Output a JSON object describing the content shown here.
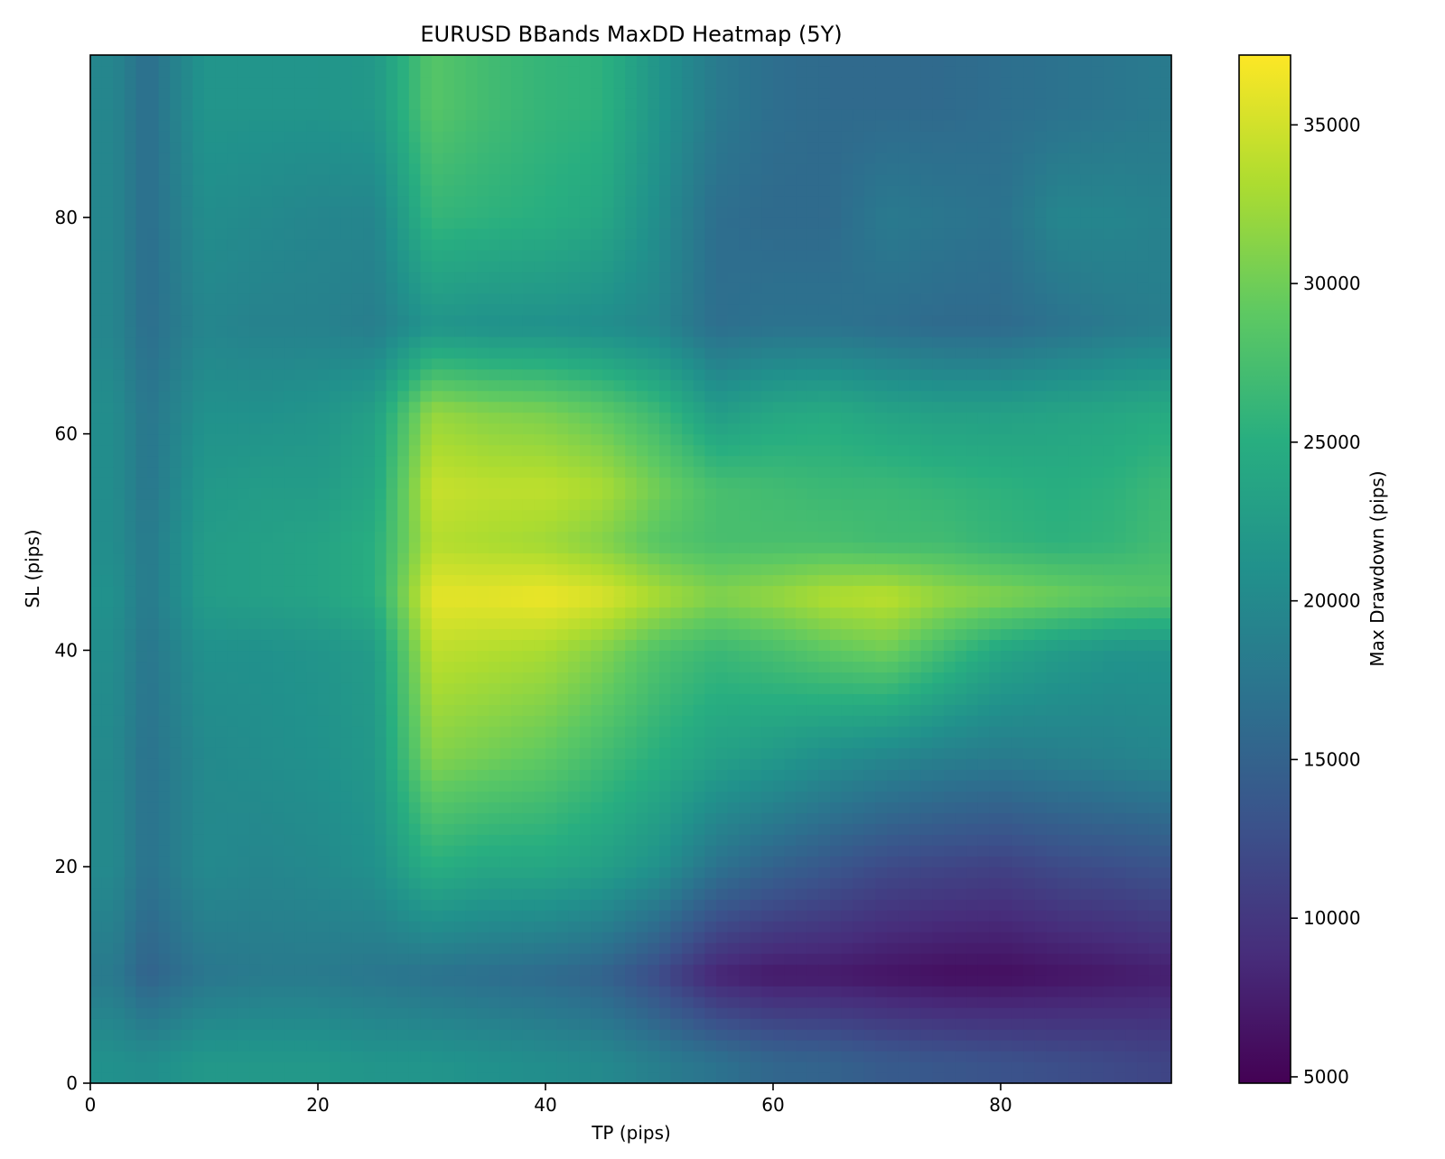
{
  "chart_data": {
    "type": "heatmap",
    "title": "EURUSD BBands MaxDD Heatmap (5Y)",
    "xlabel": "TP (pips)",
    "ylabel": "SL (pips)",
    "xlim": [
      0,
      95
    ],
    "ylim": [
      0,
      95
    ],
    "x_ticks": [
      0,
      20,
      40,
      60,
      80
    ],
    "y_ticks": [
      0,
      20,
      40,
      60,
      80
    ],
    "colorbar": {
      "label": "Max Drawdown (pips)",
      "min": 4800,
      "max": 37200,
      "ticks": [
        5000,
        10000,
        15000,
        20000,
        25000,
        30000,
        35000
      ],
      "colormap": "viridis"
    },
    "approx_grid": {
      "tp": [
        2,
        5,
        10,
        15,
        20,
        25,
        30,
        35,
        40,
        45,
        50,
        55,
        60,
        65,
        70,
        75,
        80,
        85,
        90,
        94
      ],
      "sl": [
        2,
        10,
        20,
        30,
        40,
        45,
        50,
        55,
        62,
        70,
        80,
        90
      ],
      "values": [
        [
          21000,
          20500,
          22000,
          22000,
          22000,
          21500,
          21500,
          21000,
          20500,
          20000,
          18500,
          17000,
          15500,
          15000,
          14000,
          13500,
          13000,
          12500,
          12000,
          11500
        ],
        [
          18000,
          15000,
          17500,
          18000,
          18000,
          17500,
          17000,
          16500,
          16000,
          15000,
          12000,
          8000,
          7000,
          7000,
          6500,
          6000,
          6000,
          6500,
          7000,
          7500
        ],
        [
          20000,
          17000,
          20000,
          19500,
          20000,
          21000,
          25000,
          24000,
          24000,
          23000,
          21000,
          17000,
          15000,
          13500,
          12000,
          11500,
          11000,
          12000,
          12500,
          13000
        ],
        [
          20000,
          17000,
          20000,
          20500,
          21000,
          22000,
          31000,
          30000,
          29000,
          27000,
          25000,
          23000,
          22000,
          20500,
          19500,
          18500,
          18000,
          18500,
          19000,
          19500
        ],
        [
          20500,
          17500,
          21000,
          21000,
          21500,
          22500,
          34000,
          33500,
          33000,
          31000,
          28000,
          26500,
          27500,
          29000,
          30000,
          27000,
          24000,
          22500,
          21500,
          21500
        ],
        [
          21000,
          18000,
          22500,
          23000,
          23500,
          25000,
          36000,
          36000,
          36500,
          35500,
          33000,
          31000,
          32000,
          33500,
          34000,
          32000,
          31000,
          30000,
          29000,
          28500
        ],
        [
          20500,
          18000,
          22500,
          23000,
          23500,
          25000,
          33500,
          33000,
          32500,
          31000,
          28500,
          27500,
          27500,
          27500,
          27000,
          27000,
          26000,
          25500,
          26000,
          27000
        ],
        [
          20500,
          17500,
          22000,
          22500,
          22500,
          24000,
          34500,
          34000,
          34000,
          33000,
          30000,
          27500,
          27000,
          26500,
          26500,
          26000,
          25500,
          25000,
          25500,
          26500
        ],
        [
          20500,
          17500,
          21000,
          21000,
          21500,
          23000,
          32000,
          31000,
          30500,
          29000,
          26500,
          22500,
          24000,
          24500,
          23500,
          23000,
          23000,
          23500,
          24000,
          24500
        ],
        [
          19500,
          16500,
          19500,
          19000,
          19000,
          18500,
          21500,
          21000,
          21000,
          20500,
          19500,
          16500,
          17000,
          17000,
          16500,
          16000,
          16000,
          17000,
          18000,
          18500
        ],
        [
          19500,
          16500,
          20500,
          20000,
          19500,
          19500,
          26000,
          25500,
          25000,
          24000,
          20500,
          16500,
          16000,
          16000,
          18000,
          17500,
          17000,
          19500,
          19500,
          19000
        ],
        [
          19500,
          16500,
          21500,
          21500,
          21500,
          22000,
          28500,
          27000,
          26000,
          25500,
          21500,
          18000,
          16500,
          16000,
          16000,
          16000,
          16500,
          17000,
          17500,
          18000
        ]
      ]
    }
  }
}
